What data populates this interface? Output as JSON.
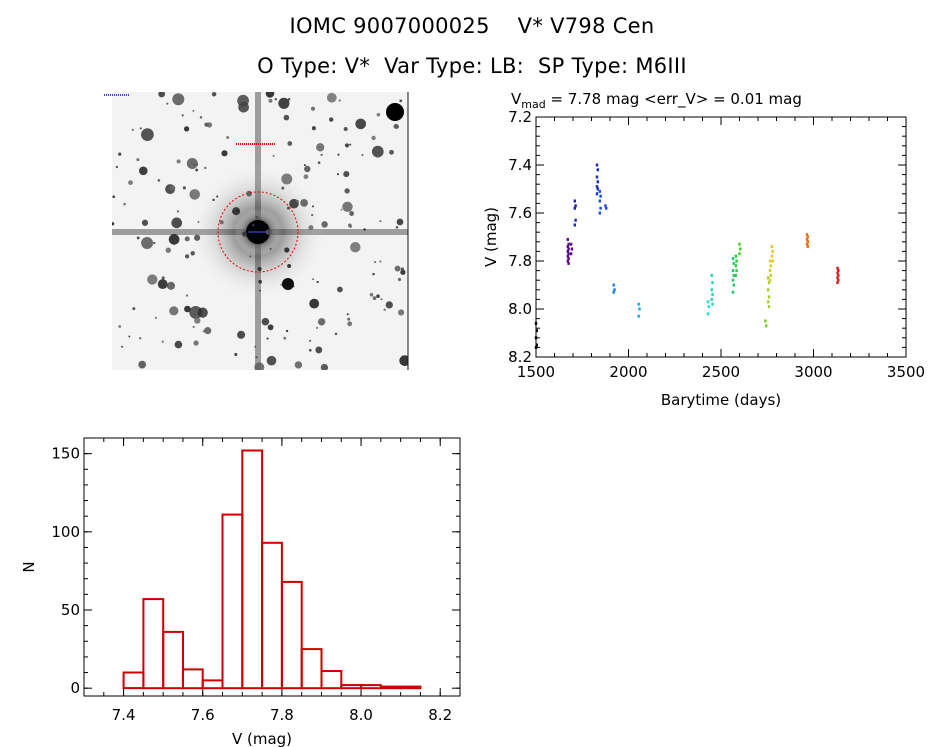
{
  "header": {
    "title_line1": "IOMC 9007000025    V* V798 Cen",
    "title_line2": "O Type: V*  Var Type: LB:  SP Type: M6III"
  },
  "image_panel": {
    "type": "finder-chart",
    "colormap": "inverted-grayscale"
  },
  "chart_data": [
    {
      "type": "scatter",
      "title_parts": {
        "main": "V",
        "sub": "mad",
        "rest": " = 7.78 mag <err_V> = 0.01 mag"
      },
      "xlabel": "Barytime (days)",
      "ylabel": "V (mag)",
      "xlim": [
        1500,
        3500
      ],
      "ylim": [
        8.2,
        7.2
      ],
      "y_inverted": true,
      "xticks": [
        1500,
        2000,
        2500,
        3000,
        3500
      ],
      "yticks": [
        7.2,
        7.4,
        7.6,
        7.8,
        8.0,
        8.2
      ],
      "grid": false,
      "colormap": "rainbow by time",
      "groups": [
        {
          "t": 1500,
          "y": [
            8.06,
            8.09,
            8.12,
            8.15,
            8.16
          ],
          "color": "#000000"
        },
        {
          "t": 1672,
          "y": [
            7.71,
            7.73,
            7.74,
            7.75,
            7.76,
            7.77,
            7.78,
            7.79,
            7.8,
            7.81
          ],
          "color": "#5b0a8c"
        },
        {
          "t": 1690,
          "y": [
            7.73,
            7.75,
            7.77
          ],
          "color": "#5b0a8c"
        },
        {
          "t": 1710,
          "y": [
            7.55,
            7.57,
            7.58,
            7.63,
            7.65
          ],
          "color": "#2020b0"
        },
        {
          "t": 1830,
          "y": [
            7.4,
            7.42,
            7.45,
            7.47,
            7.49,
            7.5,
            7.52
          ],
          "color": "#1a2ad0"
        },
        {
          "t": 1845,
          "y": [
            7.51,
            7.53,
            7.55,
            7.58,
            7.6
          ],
          "color": "#1a4ee0"
        },
        {
          "t": 1875,
          "y": [
            7.57,
            7.58
          ],
          "color": "#1a4ee0"
        },
        {
          "t": 1920,
          "y": [
            7.9,
            7.92,
            7.93
          ],
          "color": "#1a80e8"
        },
        {
          "t": 2055,
          "y": [
            7.98,
            8.0,
            8.03
          ],
          "color": "#19a8f0"
        },
        {
          "t": 2430,
          "y": [
            7.97,
            7.99,
            8.02
          ],
          "color": "#1ee0d8"
        },
        {
          "t": 2450,
          "y": [
            7.86,
            7.89,
            7.92,
            7.94,
            7.96,
            7.98
          ],
          "color": "#20d8b0"
        },
        {
          "t": 2565,
          "y": [
            7.79,
            7.81,
            7.84,
            7.86,
            7.88,
            7.9,
            7.93
          ],
          "color": "#20c870"
        },
        {
          "t": 2580,
          "y": [
            7.78,
            7.8,
            7.82,
            7.84,
            7.86
          ],
          "color": "#2ad040"
        },
        {
          "t": 2600,
          "y": [
            7.73,
            7.75,
            7.77
          ],
          "color": "#40d020"
        },
        {
          "t": 2740,
          "y": [
            8.05,
            8.07
          ],
          "color": "#70d020"
        },
        {
          "t": 2755,
          "y": [
            7.87,
            7.89,
            7.92,
            7.95,
            7.97,
            7.99
          ],
          "color": "#a0d020"
        },
        {
          "t": 2765,
          "y": [
            7.8,
            7.82,
            7.84,
            7.86,
            7.88
          ],
          "color": "#d0d020"
        },
        {
          "t": 2775,
          "y": [
            7.74,
            7.76,
            7.78,
            7.8
          ],
          "color": "#f0c020"
        },
        {
          "t": 2965,
          "y": [
            7.69,
            7.7,
            7.71,
            7.72,
            7.73,
            7.74
          ],
          "color": "#f07010"
        },
        {
          "t": 3130,
          "y": [
            7.83,
            7.84,
            7.85,
            7.86,
            7.87,
            7.88,
            7.89
          ],
          "color": "#d02020"
        }
      ]
    },
    {
      "type": "histogram",
      "xlabel": "V (mag)",
      "ylabel": "N",
      "xlim": [
        7.3,
        8.25
      ],
      "ylim": [
        -5,
        160
      ],
      "xticks": [
        7.4,
        7.6,
        7.8,
        8.0,
        8.2
      ],
      "yticks": [
        0,
        50,
        100,
        150
      ],
      "bin_edges": [
        7.4,
        7.45,
        7.5,
        7.55,
        7.6,
        7.65,
        7.7,
        7.75,
        7.8,
        7.85,
        7.9,
        7.95,
        8.0,
        8.05,
        8.1,
        8.15,
        8.2
      ],
      "counts": [
        10,
        57,
        36,
        12,
        5,
        111,
        152,
        93,
        68,
        25,
        11,
        2,
        2,
        1,
        1,
        0
      ],
      "color": "#cc0000"
    }
  ]
}
